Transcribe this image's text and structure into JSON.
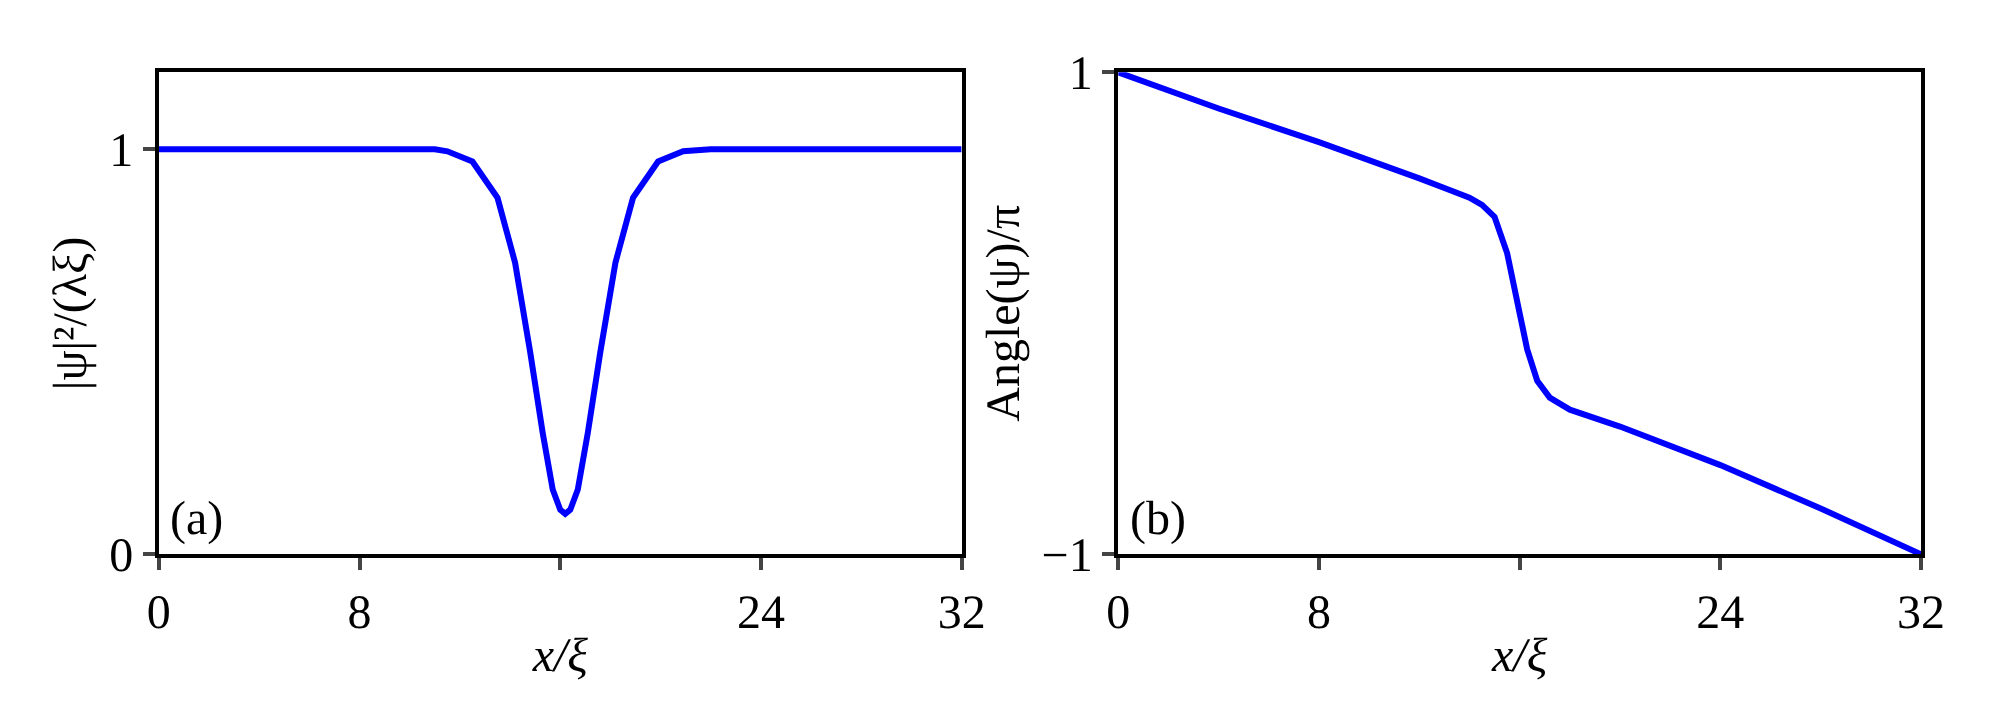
{
  "chart_data": [
    {
      "type": "line",
      "xlabel": "x/ξ",
      "ylabel": "|ψ|²/(λξ)",
      "annotations": [
        "(a)"
      ],
      "xlim": [
        0,
        32
      ],
      "ylim": [
        0,
        1.19
      ],
      "xticks": [
        0,
        8,
        {
          "value": 16,
          "label": null
        },
        24,
        32
      ],
      "yticks": [
        0,
        1
      ],
      "series": [
        {
          "color": "#0000ff",
          "x": [
            0,
            4,
            8,
            11,
            11.5,
            12.5,
            13.5,
            14.2,
            14.8,
            15.3,
            15.7,
            16.0,
            16.2,
            16.4,
            16.7,
            17.1,
            17.6,
            18.2,
            18.9,
            19.9,
            20.9,
            22,
            26,
            32
          ],
          "values": [
            1,
            1,
            1,
            1,
            0.995,
            0.97,
            0.88,
            0.72,
            0.5,
            0.3,
            0.16,
            0.11,
            0.1,
            0.11,
            0.16,
            0.3,
            0.5,
            0.72,
            0.88,
            0.97,
            0.995,
            1,
            1,
            1
          ]
        }
      ]
    },
    {
      "type": "line",
      "xlabel": "x/ξ",
      "ylabel": "Angle(ψ)/π",
      "annotations": [
        "(b)"
      ],
      "xlim": [
        0,
        32
      ],
      "ylim": [
        -1,
        1
      ],
      "xticks": [
        0,
        8,
        {
          "value": 16,
          "label": null
        },
        24,
        32
      ],
      "yticks": [
        {
          "value": -1,
          "label": "−1"
        },
        1
      ],
      "series": [
        {
          "color": "#0000ff",
          "x": [
            0,
            4,
            8,
            12,
            13,
            14,
            14.5,
            15,
            15.5,
            16,
            16.3,
            16.7,
            17.2,
            18,
            20,
            24,
            28,
            32
          ],
          "values": [
            1,
            0.85,
            0.71,
            0.56,
            0.52,
            0.48,
            0.45,
            0.4,
            0.25,
            0.0,
            -0.15,
            -0.28,
            -0.35,
            -0.4,
            -0.47,
            -0.63,
            -0.81,
            -1
          ]
        }
      ]
    }
  ]
}
